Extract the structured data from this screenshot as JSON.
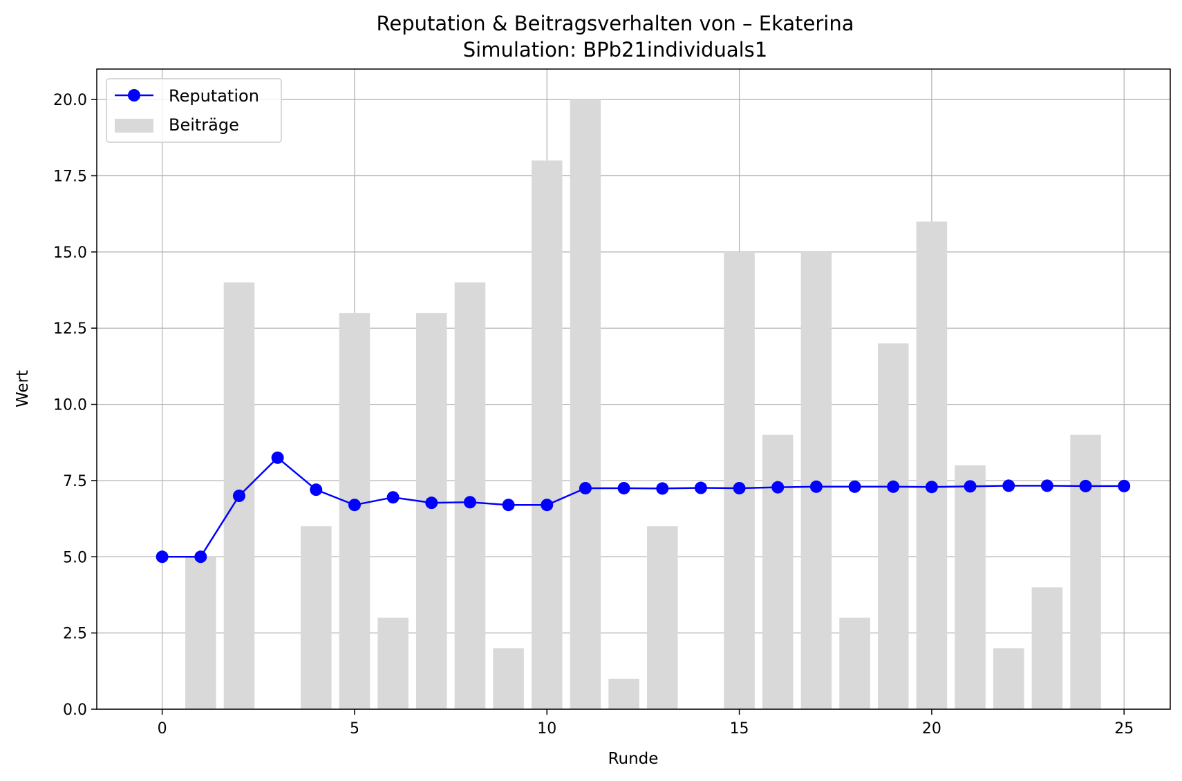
{
  "chart_data": {
    "type": "bar+line",
    "title": "Reputation & Beitragsverhalten von – Ekaterina",
    "subtitle": "Simulation: BPb21individuals1",
    "xlabel": "Runde",
    "ylabel": "Wert",
    "xlim": [
      -1.7,
      26.2
    ],
    "ylim": [
      0,
      21
    ],
    "xticks": [
      0,
      5,
      10,
      15,
      20,
      25
    ],
    "yticks": [
      0.0,
      2.5,
      5.0,
      7.5,
      10.0,
      12.5,
      15.0,
      17.5,
      20.0
    ],
    "xtick_labels": [
      "0",
      "5",
      "10",
      "15",
      "20",
      "25"
    ],
    "ytick_labels": [
      "0.0",
      "2.5",
      "5.0",
      "7.5",
      "10.0",
      "12.5",
      "15.0",
      "17.5",
      "20.0"
    ],
    "grid": true,
    "legend_position": "upper left",
    "series": [
      {
        "name": "Reputation",
        "kind": "line",
        "color": "#0000ff",
        "x": [
          0,
          1,
          2,
          3,
          4,
          5,
          6,
          7,
          8,
          9,
          10,
          11,
          12,
          13,
          14,
          15,
          16,
          17,
          18,
          19,
          20,
          21,
          22,
          23,
          24,
          25
        ],
        "values": [
          5.0,
          5.0,
          7.0,
          8.25,
          7.2,
          6.7,
          6.95,
          6.77,
          6.79,
          6.7,
          6.7,
          7.25,
          7.25,
          7.24,
          7.26,
          7.25,
          7.28,
          7.3,
          7.3,
          7.3,
          7.29,
          7.31,
          7.33,
          7.33,
          7.32,
          7.32
        ]
      },
      {
        "name": "Beiträge",
        "kind": "bar",
        "color": "#d9d9d9",
        "x": [
          1,
          2,
          3,
          4,
          5,
          6,
          7,
          8,
          9,
          10,
          11,
          12,
          13,
          14,
          15,
          16,
          17,
          18,
          19,
          20,
          21,
          22,
          23,
          24
        ],
        "values": [
          5,
          14,
          0,
          6,
          13,
          3,
          13,
          14,
          2,
          18,
          20,
          1,
          6,
          0,
          15,
          9,
          15,
          3,
          12,
          16,
          8,
          2,
          4,
          9
        ]
      }
    ]
  }
}
